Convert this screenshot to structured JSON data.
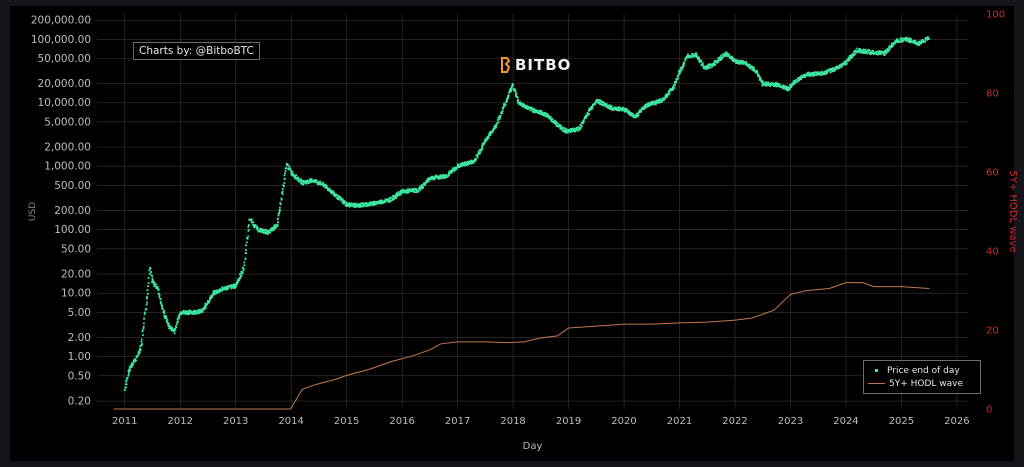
{
  "badge": "Charts by: @BitboBTC",
  "logo": "BITBO",
  "colors": {
    "price": "#3ee6a0",
    "hodl": "#c4794a",
    "right_axis": "#cc2b2b",
    "grid": "#3a3a3a",
    "text": "#bdbdbd"
  },
  "chart_data": {
    "type": "scatter+line",
    "title": "",
    "xlabel": "Day",
    "ylabel_left": "USD",
    "ylabel_right": "5Y+ HODL wave",
    "left_scale": "log",
    "left_ylim": [
      0.15,
      250000
    ],
    "right_ylim": [
      0,
      100
    ],
    "xlim": [
      2010.5,
      2026.2
    ],
    "x_ticks": [
      "2011",
      "2012",
      "2013",
      "2014",
      "2015",
      "2016",
      "2017",
      "2018",
      "2019",
      "2020",
      "2021",
      "2022",
      "2023",
      "2024",
      "2025",
      "2026"
    ],
    "left_ticks": [
      {
        "v": 0.2,
        "label": "0.20"
      },
      {
        "v": 0.5,
        "label": "0.50"
      },
      {
        "v": 1,
        "label": "1.00"
      },
      {
        "v": 2,
        "label": "2.00"
      },
      {
        "v": 5,
        "label": "5.00"
      },
      {
        "v": 10,
        "label": "10.00"
      },
      {
        "v": 20,
        "label": "20.00"
      },
      {
        "v": 50,
        "label": "50.00"
      },
      {
        "v": 100,
        "label": "100.00"
      },
      {
        "v": 200,
        "label": "200.00"
      },
      {
        "v": 500,
        "label": "500.00"
      },
      {
        "v": 1000,
        "label": "1,000.00"
      },
      {
        "v": 2000,
        "label": "2,000.00"
      },
      {
        "v": 5000,
        "label": "5,000.00"
      },
      {
        "v": 10000,
        "label": "10,000.00"
      },
      {
        "v": 20000,
        "label": "20,000.00"
      },
      {
        "v": 50000,
        "label": "50,000.00"
      },
      {
        "v": 100000,
        "label": "100,000.00"
      },
      {
        "v": 200000,
        "label": "200,000.00"
      }
    ],
    "right_ticks": [
      "0",
      "20",
      "40",
      "60",
      "80",
      "100"
    ],
    "legend": {
      "position": "bottom-right",
      "items": [
        "Price end of day",
        "5Y+ HODL wave"
      ]
    },
    "series": [
      {
        "name": "Price end of day",
        "kind": "scatter",
        "axis": "left",
        "points": [
          [
            2011.0,
            0.3
          ],
          [
            2011.1,
            0.7
          ],
          [
            2011.2,
            0.9
          ],
          [
            2011.3,
            1.5
          ],
          [
            2011.4,
            8
          ],
          [
            2011.45,
            26
          ],
          [
            2011.5,
            15
          ],
          [
            2011.6,
            12
          ],
          [
            2011.7,
            5
          ],
          [
            2011.8,
            3
          ],
          [
            2011.9,
            2.5
          ],
          [
            2012.0,
            5
          ],
          [
            2012.2,
            5
          ],
          [
            2012.4,
            5.2
          ],
          [
            2012.6,
            10
          ],
          [
            2012.8,
            12
          ],
          [
            2013.0,
            13
          ],
          [
            2013.15,
            25
          ],
          [
            2013.25,
            150
          ],
          [
            2013.4,
            100
          ],
          [
            2013.6,
            90
          ],
          [
            2013.75,
            120
          ],
          [
            2013.85,
            400
          ],
          [
            2013.92,
            1100
          ],
          [
            2014.0,
            800
          ],
          [
            2014.2,
            550
          ],
          [
            2014.4,
            600
          ],
          [
            2014.6,
            500
          ],
          [
            2014.8,
            350
          ],
          [
            2015.0,
            250
          ],
          [
            2015.2,
            240
          ],
          [
            2015.5,
            260
          ],
          [
            2015.8,
            300
          ],
          [
            2016.0,
            400
          ],
          [
            2016.3,
            420
          ],
          [
            2016.5,
            650
          ],
          [
            2016.8,
            700
          ],
          [
            2017.0,
            1000
          ],
          [
            2017.3,
            1200
          ],
          [
            2017.5,
            2500
          ],
          [
            2017.7,
            4500
          ],
          [
            2017.9,
            12000
          ],
          [
            2018.0,
            19000
          ],
          [
            2018.1,
            10000
          ],
          [
            2018.3,
            8000
          ],
          [
            2018.6,
            6500
          ],
          [
            2018.9,
            3800
          ],
          [
            2019.0,
            3500
          ],
          [
            2019.2,
            4000
          ],
          [
            2019.4,
            8000
          ],
          [
            2019.5,
            11000
          ],
          [
            2019.8,
            8000
          ],
          [
            2020.0,
            8000
          ],
          [
            2020.2,
            6000
          ],
          [
            2020.4,
            9000
          ],
          [
            2020.7,
            11000
          ],
          [
            2020.9,
            18000
          ],
          [
            2021.0,
            30000
          ],
          [
            2021.15,
            55000
          ],
          [
            2021.3,
            58000
          ],
          [
            2021.45,
            35000
          ],
          [
            2021.6,
            40000
          ],
          [
            2021.85,
            60000
          ],
          [
            2022.0,
            45000
          ],
          [
            2022.2,
            42000
          ],
          [
            2022.4,
            30000
          ],
          [
            2022.5,
            20000
          ],
          [
            2022.8,
            19000
          ],
          [
            2022.95,
            16500
          ],
          [
            2023.1,
            22000
          ],
          [
            2023.3,
            28000
          ],
          [
            2023.6,
            29000
          ],
          [
            2023.8,
            34000
          ],
          [
            2024.0,
            43000
          ],
          [
            2024.2,
            67000
          ],
          [
            2024.5,
            62000
          ],
          [
            2024.7,
            60000
          ],
          [
            2024.9,
            95000
          ],
          [
            2025.1,
            100000
          ],
          [
            2025.3,
            85000
          ],
          [
            2025.5,
            105000
          ]
        ]
      },
      {
        "name": "5Y+ HODL wave",
        "kind": "line",
        "axis": "right",
        "points": [
          [
            2010.8,
            0
          ],
          [
            2013.99,
            0
          ],
          [
            2014.2,
            5
          ],
          [
            2014.4,
            6
          ],
          [
            2014.6,
            6.8
          ],
          [
            2014.8,
            7.5
          ],
          [
            2015.0,
            8.5
          ],
          [
            2015.4,
            10
          ],
          [
            2015.8,
            12
          ],
          [
            2016.2,
            13.5
          ],
          [
            2016.5,
            15
          ],
          [
            2016.7,
            16.5
          ],
          [
            2017.0,
            17
          ],
          [
            2017.5,
            17
          ],
          [
            2017.9,
            16.8
          ],
          [
            2018.2,
            17
          ],
          [
            2018.5,
            18
          ],
          [
            2018.8,
            18.5
          ],
          [
            2019.0,
            20.5
          ],
          [
            2019.5,
            21
          ],
          [
            2020.0,
            21.5
          ],
          [
            2020.5,
            21.5
          ],
          [
            2021.0,
            21.8
          ],
          [
            2021.5,
            22
          ],
          [
            2022.0,
            22.5
          ],
          [
            2022.3,
            23
          ],
          [
            2022.7,
            25
          ],
          [
            2023.0,
            29
          ],
          [
            2023.3,
            30
          ],
          [
            2023.7,
            30.5
          ],
          [
            2024.0,
            32
          ],
          [
            2024.3,
            32
          ],
          [
            2024.5,
            31
          ],
          [
            2025.0,
            31
          ],
          [
            2025.5,
            30.5
          ]
        ]
      }
    ]
  }
}
